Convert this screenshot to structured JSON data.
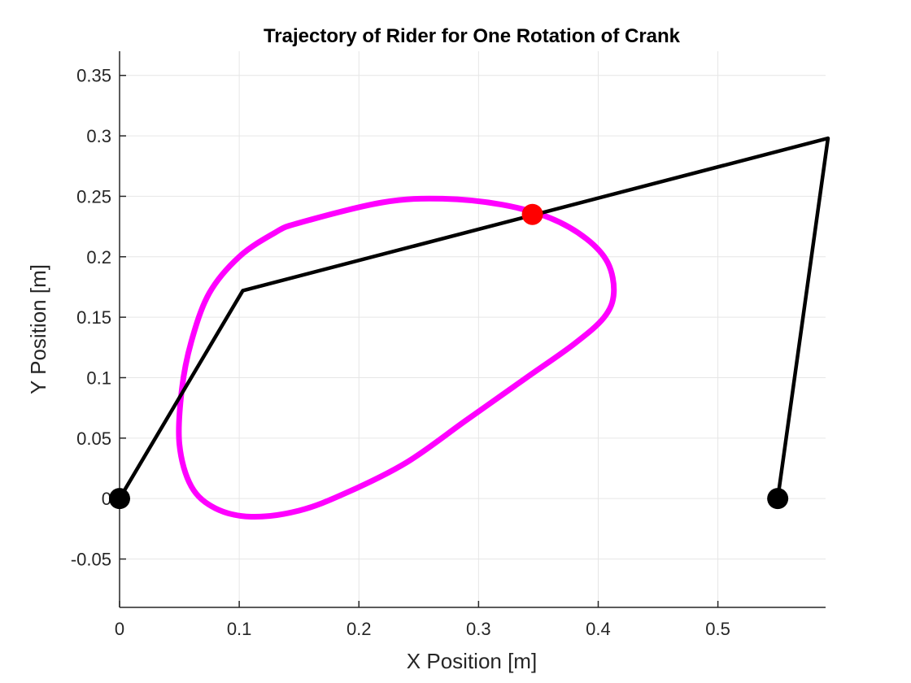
{
  "chart_data": {
    "type": "line",
    "title": "Trajectory of Rider for One Rotation of Crank",
    "xlabel": "X Position [m]",
    "ylabel": "Y Position [m]",
    "xlim": [
      0,
      0.59
    ],
    "ylim": [
      -0.09,
      0.37
    ],
    "xticks": [
      0,
      0.1,
      0.2,
      0.3,
      0.4,
      0.5
    ],
    "xtick_labels": [
      "0",
      "0.1",
      "0.2",
      "0.3",
      "0.4",
      "0.5"
    ],
    "yticks": [
      -0.05,
      0,
      0.05,
      0.1,
      0.15,
      0.2,
      0.25,
      0.3,
      0.35
    ],
    "ytick_labels": [
      "-0.05",
      "0",
      "0.05",
      "0.1",
      "0.15",
      "0.2",
      "0.25",
      "0.3",
      "0.35"
    ],
    "grid": true,
    "colors": {
      "trajectory": "#ff00ff",
      "linkage": "#000000",
      "rider_point": "#ff0000",
      "pivot": "#000000",
      "grid": "#e6e6e6",
      "axis": "#262626"
    },
    "trajectory": {
      "x": [
        0.15,
        0.22,
        0.27,
        0.32,
        0.36,
        0.39,
        0.408,
        0.413,
        0.405,
        0.38,
        0.34,
        0.29,
        0.24,
        0.19,
        0.15,
        0.11,
        0.08,
        0.06,
        0.05,
        0.052,
        0.06,
        0.075,
        0.1,
        0.13,
        0.15
      ],
      "y": [
        0.228,
        0.245,
        0.248,
        0.243,
        0.232,
        0.215,
        0.195,
        0.17,
        0.15,
        0.128,
        0.1,
        0.065,
        0.03,
        0.005,
        -0.01,
        -0.015,
        -0.008,
        0.01,
        0.045,
        0.09,
        0.13,
        0.17,
        0.2,
        0.22,
        0.228
      ]
    },
    "linkage": {
      "x": [
        0,
        0.103,
        0.592,
        0.55
      ],
      "y": [
        0,
        0.172,
        0.298,
        0
      ]
    },
    "rider_point": {
      "x": 0.345,
      "y": 0.235
    },
    "pivots": [
      {
        "x": 0,
        "y": 0
      },
      {
        "x": 0.55,
        "y": 0
      }
    ]
  }
}
